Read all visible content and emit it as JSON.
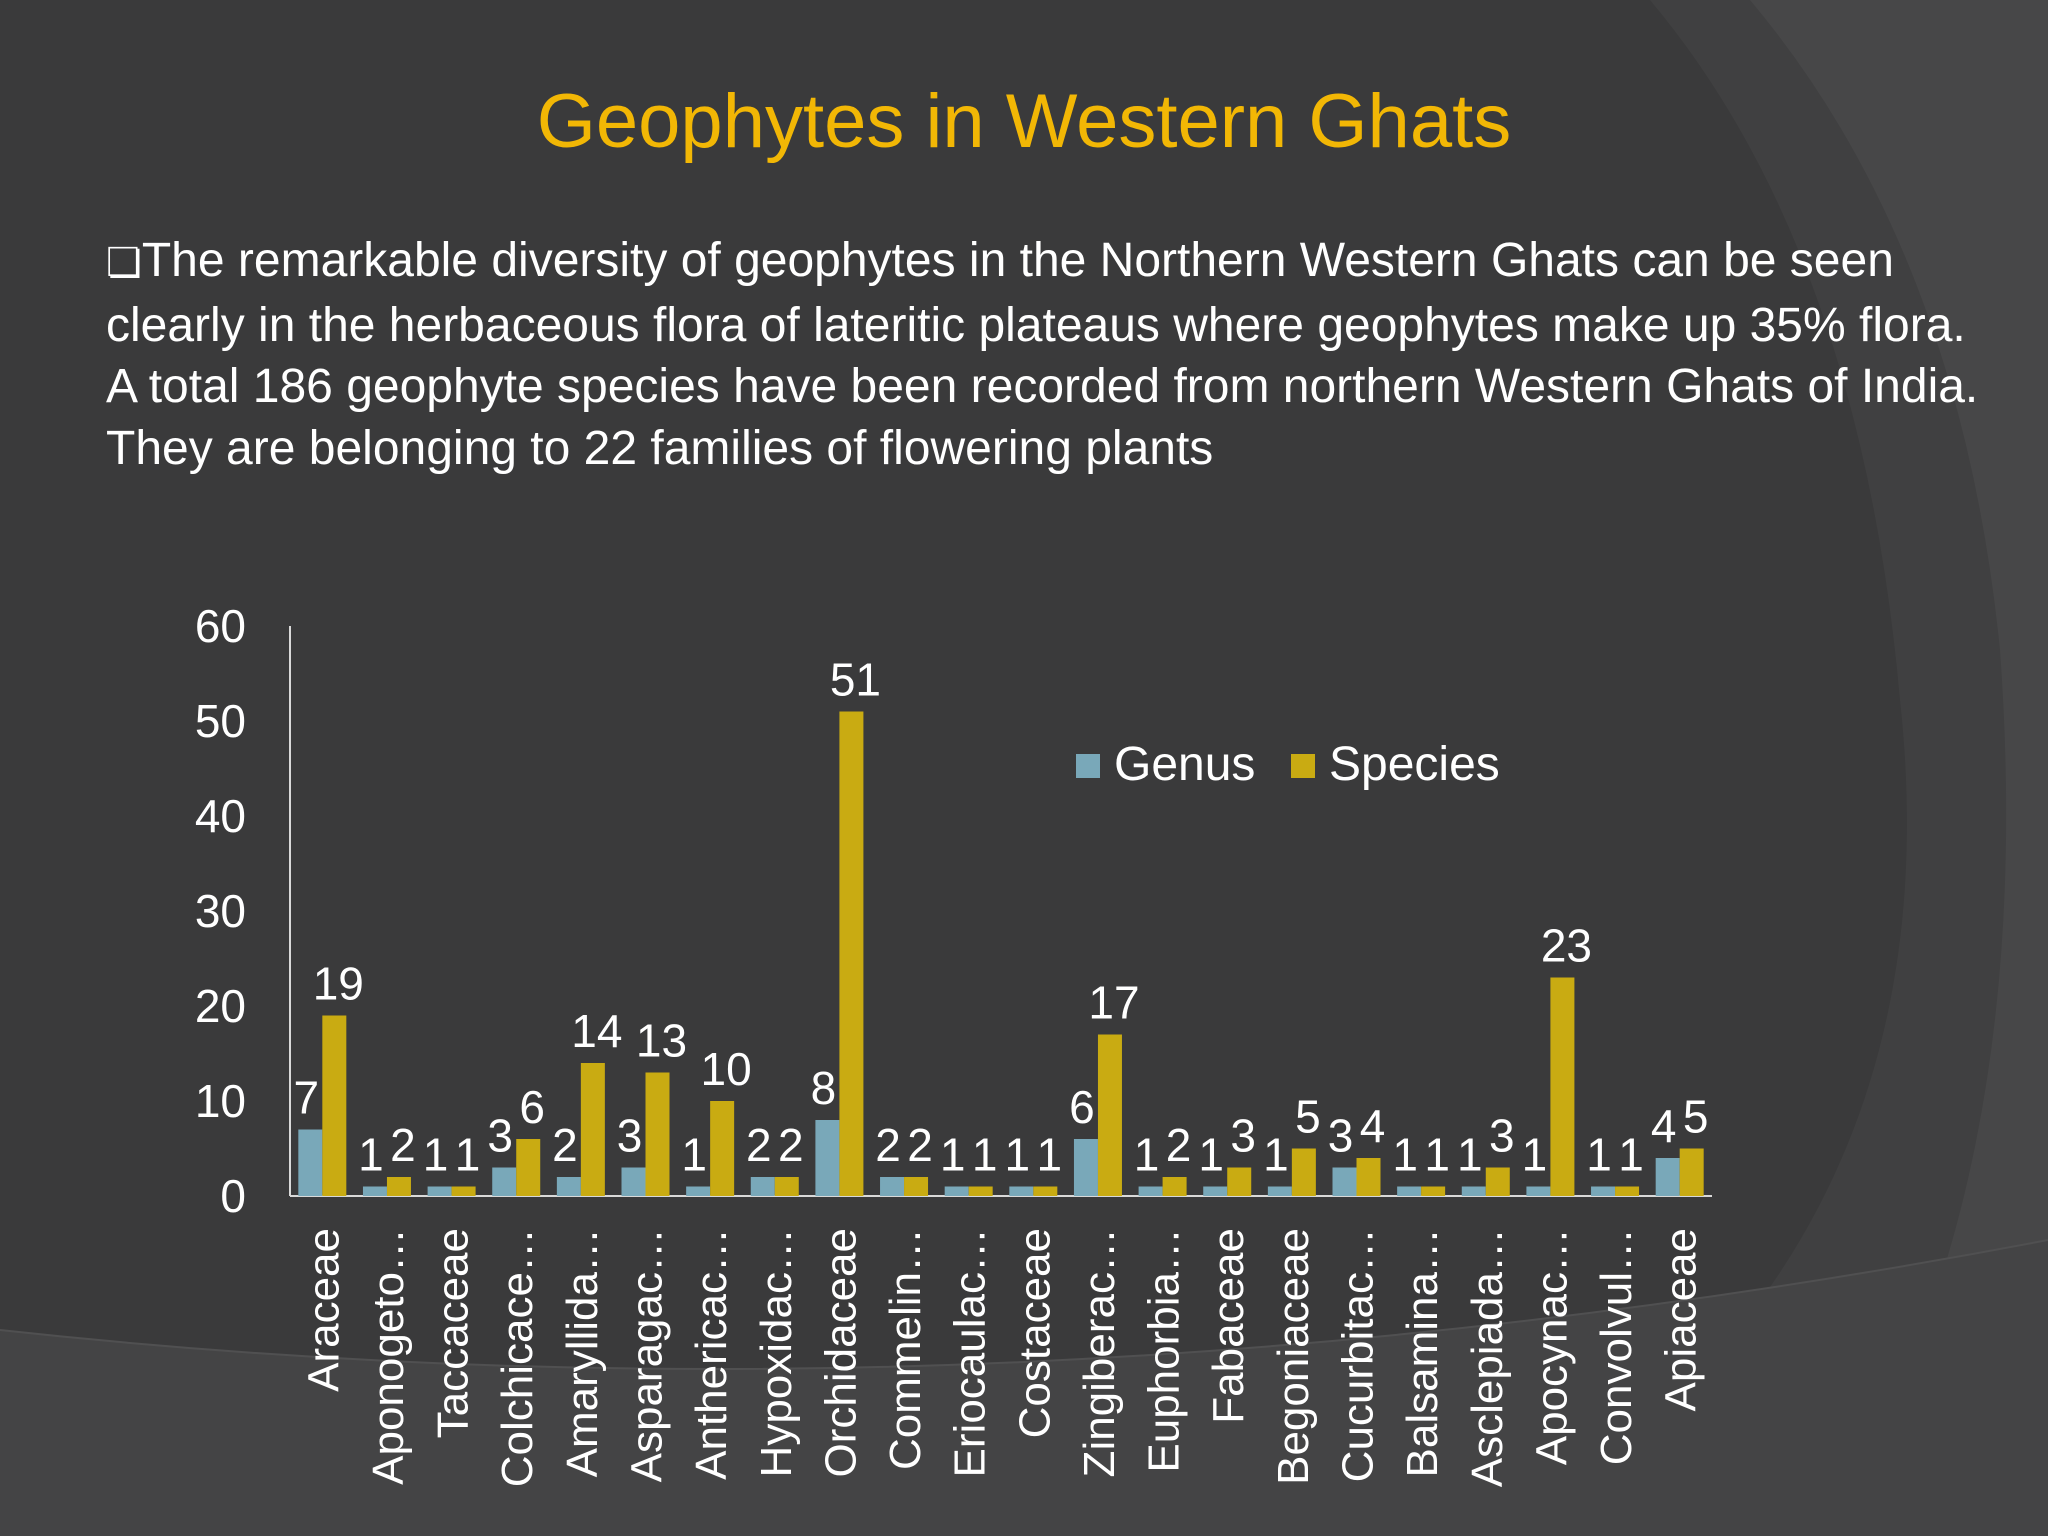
{
  "slide": {
    "title": "Geophytes in Western Ghats",
    "bullet_glyph": "❏",
    "paragraph": "The remarkable diversity of geophytes in the Northern Western Ghats can be seen clearly in the herbaceous flora of lateritic plateaus where geophytes make up 35% flora.  A total 186 geophyte species have been recorded from northern Western Ghats of India. They are belonging to 22 families of flowering plants",
    "colors": {
      "title": "#f2b705",
      "text": "#ffffff",
      "background": "#3a3a3b"
    }
  },
  "chart_data": {
    "type": "bar",
    "categories": [
      "Araceae",
      "Aponogeto…",
      "Taccaceae",
      "Colchicace…",
      "Amaryllida…",
      "Asparagac…",
      "Anthericac…",
      "Hypoxidac…",
      "Orchidaceae",
      "Commelin…",
      "Eriocaulac…",
      "Costaceae",
      "Zingiberac…",
      "Euphorbia…",
      "Fabaceae",
      "Begoniaceae",
      "Cucurbitac…",
      "Balsamina…",
      "Asclepiada…",
      "Apocynac…",
      "Convolvul…",
      "Apiaceae"
    ],
    "series": [
      {
        "name": "Genus",
        "color": "#79a8b9",
        "values": [
          7,
          1,
          1,
          3,
          2,
          3,
          1,
          2,
          8,
          2,
          1,
          1,
          6,
          1,
          1,
          1,
          3,
          1,
          1,
          1,
          1,
          4
        ]
      },
      {
        "name": "Species",
        "color": "#c9ab12",
        "values": [
          19,
          2,
          1,
          6,
          14,
          13,
          10,
          2,
          51,
          2,
          1,
          1,
          17,
          2,
          3,
          5,
          4,
          1,
          3,
          23,
          1,
          5
        ]
      }
    ],
    "yticks": [
      "0",
      "10",
      "20",
      "30",
      "40",
      "50",
      "60"
    ],
    "ylim": [
      0,
      60
    ],
    "grid": false,
    "legend_position": "top-right",
    "data_labels": true
  }
}
